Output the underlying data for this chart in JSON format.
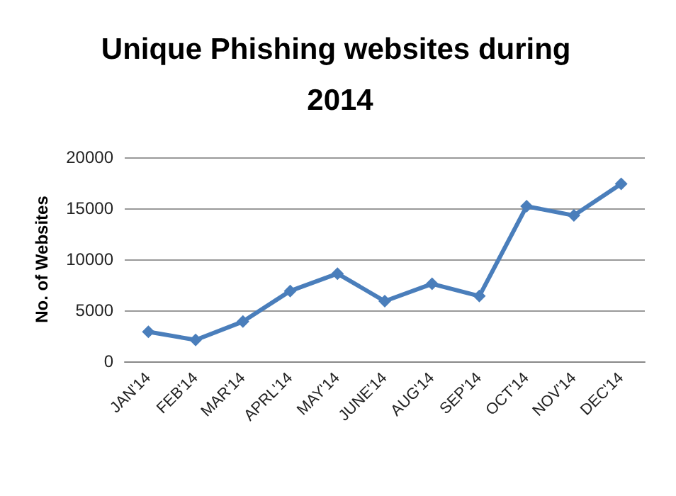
{
  "chart_data": {
    "type": "line",
    "title": "Unique Phishing websites during 2014",
    "ylabel": "No. of Websites",
    "categories": [
      "JAN'14",
      "FEB'14",
      "MAR'14",
      "APRL'14",
      "MAY'14",
      "JUNE'14",
      "AUG'14",
      "SEP'14",
      "OCT'14",
      "NOV'14",
      "DEC'14"
    ],
    "series": [
      {
        "color": "#4a7ebb",
        "values": [
          2900,
          2100,
          3900,
          6900,
          8600,
          5900,
          7600,
          6400,
          15200,
          14300,
          17400
        ]
      }
    ],
    "ylim": [
      0,
      20000
    ],
    "yticks": [
      0,
      5000,
      10000,
      15000,
      20000
    ],
    "grid": "y",
    "marker": "diamond",
    "line_style": "solid"
  }
}
